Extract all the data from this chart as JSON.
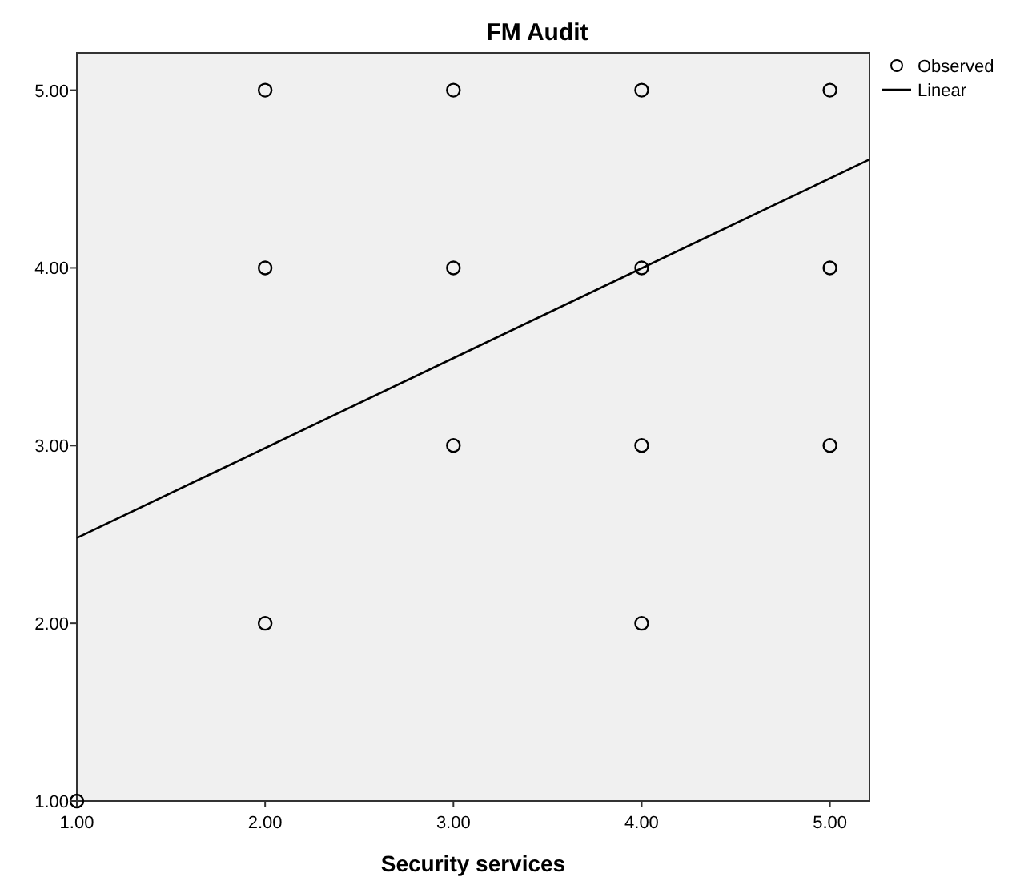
{
  "chart_data": {
    "type": "scatter",
    "title": "FM Audit",
    "xlabel": "Security services",
    "xlim": [
      1,
      5.21
    ],
    "ylim": [
      1,
      5.21
    ],
    "xticks": [
      {
        "value": 1,
        "label": "1.00"
      },
      {
        "value": 2,
        "label": "2.00"
      },
      {
        "value": 3,
        "label": "3.00"
      },
      {
        "value": 4,
        "label": "4.00"
      },
      {
        "value": 5,
        "label": "5.00"
      }
    ],
    "yticks": [
      {
        "value": 1,
        "label": "1.00"
      },
      {
        "value": 2,
        "label": "2.00"
      },
      {
        "value": 3,
        "label": "3.00"
      },
      {
        "value": 4,
        "label": "4.00"
      },
      {
        "value": 5,
        "label": "5.00"
      }
    ],
    "grid": false,
    "legend": "top right",
    "series": [
      {
        "name": "Observed",
        "marker": "circle",
        "color": "#000000",
        "x": [
          1,
          2,
          2,
          2,
          3,
          3,
          3,
          4,
          4,
          4,
          4,
          5,
          5,
          5
        ],
        "values": [
          1,
          2,
          4,
          5,
          3,
          4,
          5,
          2,
          3,
          4,
          5,
          3,
          4,
          5
        ]
      },
      {
        "name": "Linear",
        "type": "line",
        "color": "#000000",
        "line_style": "solid",
        "x": [
          1,
          5.21
        ],
        "values": [
          2.48,
          4.61
        ]
      }
    ]
  }
}
